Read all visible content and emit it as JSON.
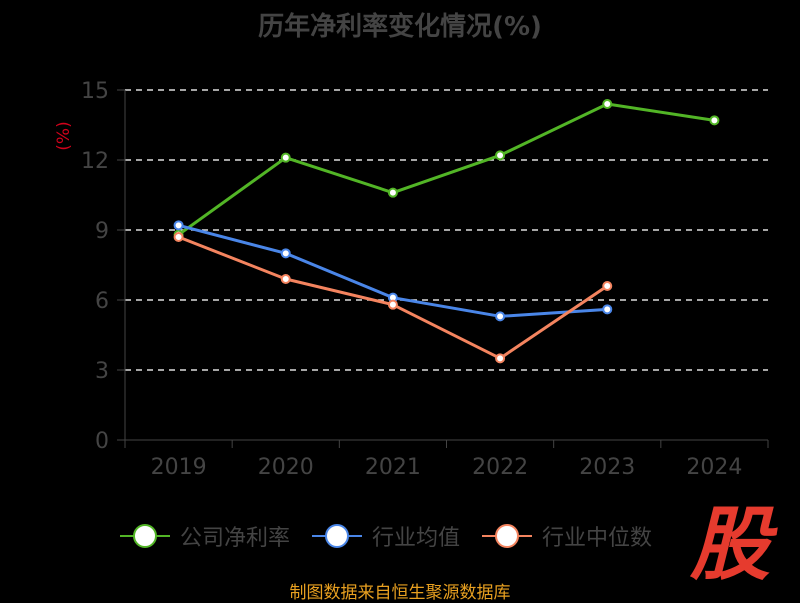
{
  "chart_data": {
    "type": "line",
    "title": "历年净利率变化情况(%)",
    "ylabel": "(%)",
    "categories": [
      "2019",
      "2020",
      "2021",
      "2022",
      "2023",
      "2024"
    ],
    "yticks": [
      "0",
      "3",
      "6",
      "9",
      "12",
      "15"
    ],
    "ylim": [
      0,
      15
    ],
    "grid": true,
    "legend_position": "bottom",
    "series": [
      {
        "name": "公司净利率",
        "color": "#52b526",
        "values": [
          8.8,
          12.1,
          10.6,
          12.2,
          14.4,
          13.7
        ]
      },
      {
        "name": "行业均值",
        "color": "#4a86e8",
        "values": [
          9.2,
          8.0,
          6.1,
          5.3,
          5.6,
          null
        ]
      },
      {
        "name": "行业中位数",
        "color": "#f4845f",
        "values": [
          8.7,
          6.9,
          5.8,
          3.5,
          6.6,
          null
        ]
      }
    ]
  },
  "logo_text": "股",
  "source_text": "制图数据来自恒生聚源数据库"
}
